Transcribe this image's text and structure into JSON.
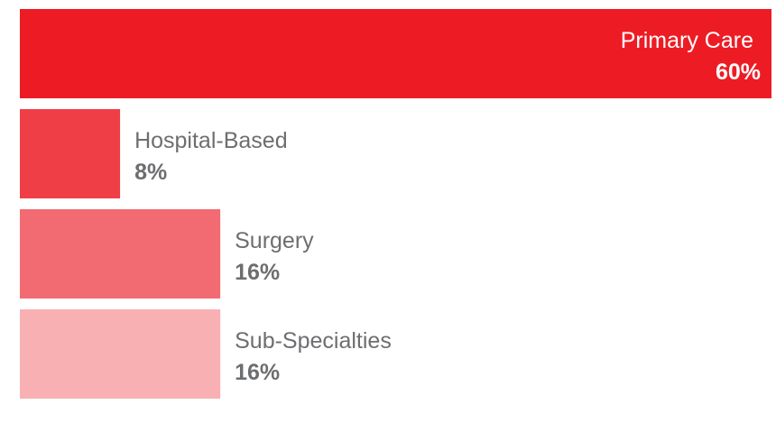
{
  "chart_data": {
    "type": "bar",
    "orientation": "horizontal",
    "categories": [
      "Primary Care",
      "Hospital-Based",
      "Surgery",
      "Sub-Specialties"
    ],
    "values": [
      60,
      8,
      16,
      16
    ],
    "value_labels": [
      "60%",
      "8%",
      "16%",
      "16%"
    ],
    "xlim": [
      0,
      60
    ],
    "grid": false,
    "legend": "none",
    "colors": [
      "#ed1c24",
      "#f03e47",
      "#f26b72",
      "#f8b0b3"
    ],
    "label_colors": {
      "inside": "#ffffff",
      "outside": "#6d6e70"
    }
  }
}
